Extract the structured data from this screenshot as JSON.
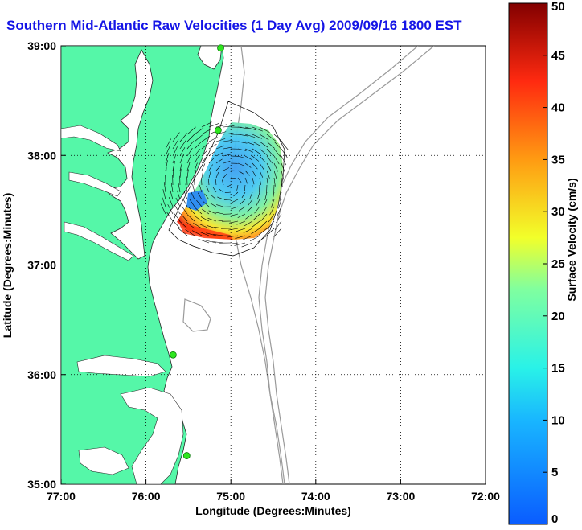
{
  "title": "Southern Mid-Atlantic Raw Velocities (1 Day Avg) 2009/09/16 1800 EST",
  "map": {
    "xlabel": "Longitude (Degrees:Minutes)",
    "ylabel": "Latitude (Degrees:Minutes)",
    "lon_range": [
      -77,
      -72
    ],
    "lat_range": [
      35,
      39
    ],
    "x_ticks": [
      {
        "value": -77,
        "label": "77:00"
      },
      {
        "value": -76,
        "label": "76:00"
      },
      {
        "value": -75,
        "label": "75:00"
      },
      {
        "value": -74,
        "label": "74:00"
      },
      {
        "value": -73,
        "label": "73:00"
      },
      {
        "value": -72,
        "label": "72:00"
      }
    ],
    "y_ticks": [
      {
        "value": 35,
        "label": "35:00"
      },
      {
        "value": 36,
        "label": "36:00"
      },
      {
        "value": 37,
        "label": "37:00"
      },
      {
        "value": 38,
        "label": "38:00"
      },
      {
        "value": 39,
        "label": "39:00"
      }
    ],
    "land_color": "#55f7a8",
    "water_color": "#ffffff",
    "station_color": "#2ee61e",
    "stations": [
      {
        "lon": -75.12,
        "lat": 38.98
      },
      {
        "lon": -75.15,
        "lat": 38.23
      },
      {
        "lon": -75.68,
        "lat": 36.18
      },
      {
        "lon": -75.52,
        "lat": 35.26
      }
    ]
  },
  "colorbar": {
    "label": "Surface Velocity (cm/s)",
    "min": 0,
    "max": 50,
    "ticks": [
      "0",
      "5",
      "10",
      "15",
      "20",
      "25",
      "30",
      "35",
      "40",
      "45",
      "50"
    ]
  }
}
